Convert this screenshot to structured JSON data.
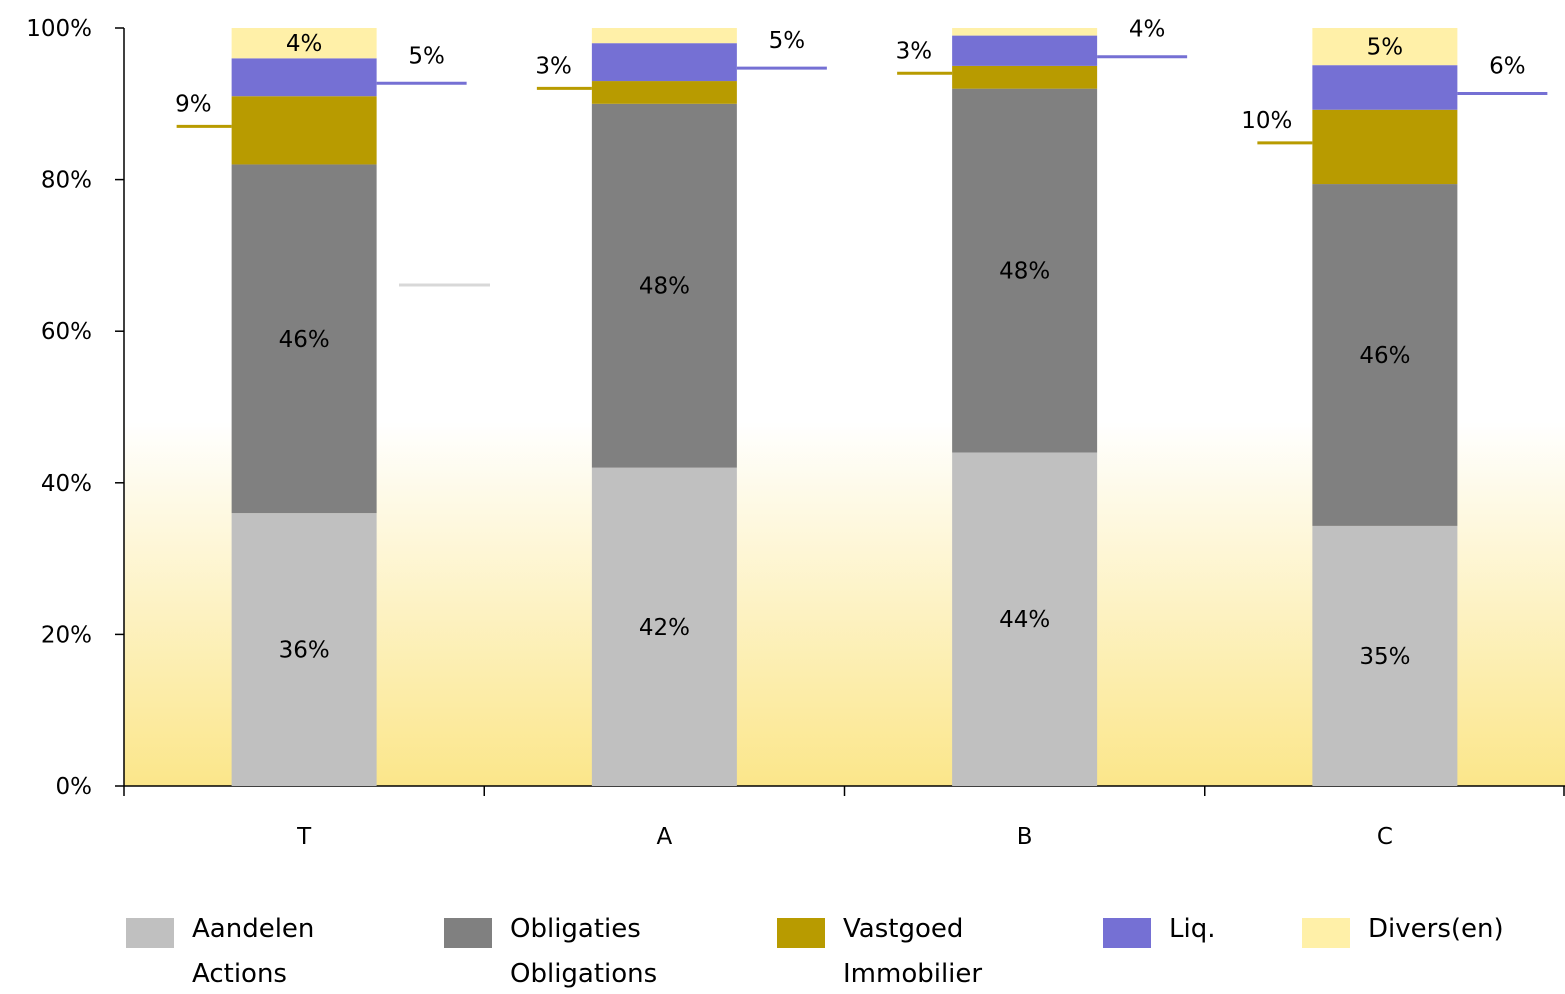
{
  "chart_data": {
    "type": "bar",
    "stacked": true,
    "categories": [
      "T",
      "A",
      "B",
      "C"
    ],
    "ylim": [
      0,
      100
    ],
    "yticks": [
      "0%",
      "20%",
      "40%",
      "60%",
      "80%",
      "100%"
    ],
    "series": [
      {
        "name": "Aandelen\nActions",
        "name_lines": [
          "Aandelen",
          "Actions"
        ],
        "color": "#c0c0c0",
        "values": [
          36,
          42,
          44,
          35
        ],
        "labels": [
          "36%",
          "42%",
          "44%",
          "35%"
        ]
      },
      {
        "name": "Obligaties\nObligations",
        "name_lines": [
          "Obligaties",
          "Obligations"
        ],
        "color": "#808080",
        "values": [
          46,
          48,
          48,
          46
        ],
        "labels": [
          "46%",
          "48%",
          "48%",
          "46%"
        ]
      },
      {
        "name": "Vastgoed\nImmobilier",
        "name_lines": [
          "Vastgoed",
          "Immobilier"
        ],
        "color": "#b89b00",
        "values": [
          9,
          3,
          3,
          10
        ],
        "labels": [
          "9%",
          "3%",
          "3%",
          "10%"
        ]
      },
      {
        "name": "Liq.",
        "name_lines": [
          "Liq."
        ],
        "color": "#7570d4",
        "values": [
          5,
          5,
          4,
          6
        ],
        "labels": [
          "5%",
          "5%",
          "4%",
          "6%"
        ]
      },
      {
        "name": "Divers(en)",
        "name_lines": [
          "Divers(en)"
        ],
        "color": "#fff0a8",
        "values": [
          4,
          2,
          1,
          5
        ],
        "labels": [
          "4%",
          "",
          "",
          "5%"
        ]
      }
    ],
    "background": {
      "gradient_top": "#ffffff",
      "gradient_bottom": "#fbe68a"
    },
    "legend_position": "bottom",
    "grid": false
  }
}
